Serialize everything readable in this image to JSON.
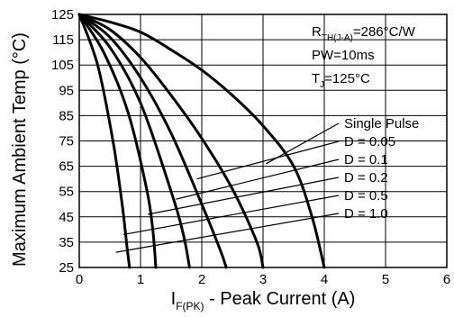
{
  "chart_data": {
    "type": "line",
    "title": "",
    "xlabel": {
      "main": "I",
      "sub": "F(PK)",
      "rest": " - Peak Current (A)"
    },
    "ylabel": "Maximum Ambient Temp (°C)",
    "xlim": [
      0,
      6
    ],
    "ylim": [
      25,
      125
    ],
    "xticks": [
      0,
      1,
      2,
      3,
      4,
      5,
      6
    ],
    "yticks": [
      25,
      35,
      45,
      55,
      65,
      75,
      85,
      95,
      105,
      115,
      125
    ],
    "grid": true,
    "annotations": [
      {
        "parts": [
          {
            "text": "R"
          },
          {
            "text": "TH(J-A)",
            "sub": true
          },
          {
            "text": "=286°C/W"
          }
        ]
      },
      {
        "parts": [
          {
            "text": "PW=10ms"
          }
        ]
      },
      {
        "parts": [
          {
            "text": "T"
          },
          {
            "text": "J",
            "sub": true
          },
          {
            "text": "=125°C"
          }
        ]
      }
    ],
    "series": [
      {
        "name": "Single Pulse",
        "points": [
          [
            0,
            125
          ],
          [
            0.5,
            122
          ],
          [
            1,
            118
          ],
          [
            1.5,
            111
          ],
          [
            2,
            103
          ],
          [
            2.5,
            93
          ],
          [
            3,
            81
          ],
          [
            3.5,
            65
          ],
          [
            3.8,
            45
          ],
          [
            4,
            25
          ]
        ],
        "leader_anchor": [
          3.05,
          66
        ]
      },
      {
        "name": "D = 0.05",
        "points": [
          [
            0,
            125
          ],
          [
            0.5,
            119
          ],
          [
            1,
            108
          ],
          [
            1.5,
            93
          ],
          [
            2,
            76
          ],
          [
            2.5,
            56
          ],
          [
            2.9,
            35
          ],
          [
            3,
            25
          ]
        ],
        "leader_anchor": [
          1.92,
          60
        ]
      },
      {
        "name": "D = 0.1",
        "points": [
          [
            0,
            125
          ],
          [
            0.5,
            116
          ],
          [
            1,
            100
          ],
          [
            1.5,
            78
          ],
          [
            2,
            50
          ],
          [
            2.3,
            32
          ],
          [
            2.4,
            25
          ]
        ],
        "leader_anchor": [
          1.58,
          52
        ]
      },
      {
        "name": "D = 0.2",
        "points": [
          [
            0,
            125
          ],
          [
            0.5,
            112
          ],
          [
            1,
            90
          ],
          [
            1.5,
            55
          ],
          [
            1.7,
            38
          ],
          [
            1.8,
            25
          ]
        ],
        "leader_anchor": [
          1.12,
          46
        ]
      },
      {
        "name": "D = 0.5",
        "points": [
          [
            0,
            125
          ],
          [
            0.4,
            110
          ],
          [
            0.8,
            86
          ],
          [
            1.1,
            56
          ],
          [
            1.2,
            40
          ],
          [
            1.25,
            25
          ]
        ],
        "leader_anchor": [
          0.72,
          38
        ]
      },
      {
        "name": "D = 1.0",
        "points": [
          [
            0,
            125
          ],
          [
            0.3,
            105
          ],
          [
            0.55,
            75
          ],
          [
            0.7,
            50
          ],
          [
            0.78,
            33
          ],
          [
            0.82,
            25
          ]
        ],
        "leader_anchor": [
          0.6,
          31
        ]
      }
    ],
    "legend": {
      "placement": "right-inside, leader lines to curves"
    }
  }
}
